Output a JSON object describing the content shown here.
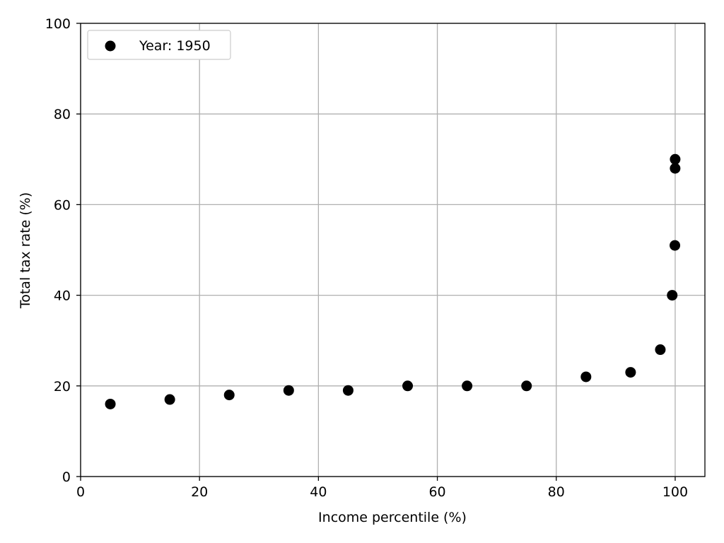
{
  "chart_data": {
    "type": "scatter",
    "title": "",
    "xlabel": "Income percentile (%)",
    "ylabel": "Total tax rate (%)",
    "xlim": [
      0,
      105
    ],
    "ylim": [
      0,
      100
    ],
    "xticks": [
      0,
      20,
      40,
      60,
      80,
      100
    ],
    "yticks": [
      0,
      20,
      40,
      60,
      80,
      100
    ],
    "grid": true,
    "legend_position": "top-left",
    "series": [
      {
        "name": "Year: 1950",
        "color": "#000000",
        "marker": "circle",
        "x": [
          5,
          15,
          25,
          35,
          45,
          55,
          65,
          75,
          85,
          92.5,
          97.5,
          99.5,
          99.95,
          99.99,
          99.995
        ],
        "y": [
          16,
          17,
          18,
          19,
          19,
          20,
          20,
          20,
          22,
          23,
          28,
          40,
          51,
          68,
          70
        ]
      }
    ]
  }
}
